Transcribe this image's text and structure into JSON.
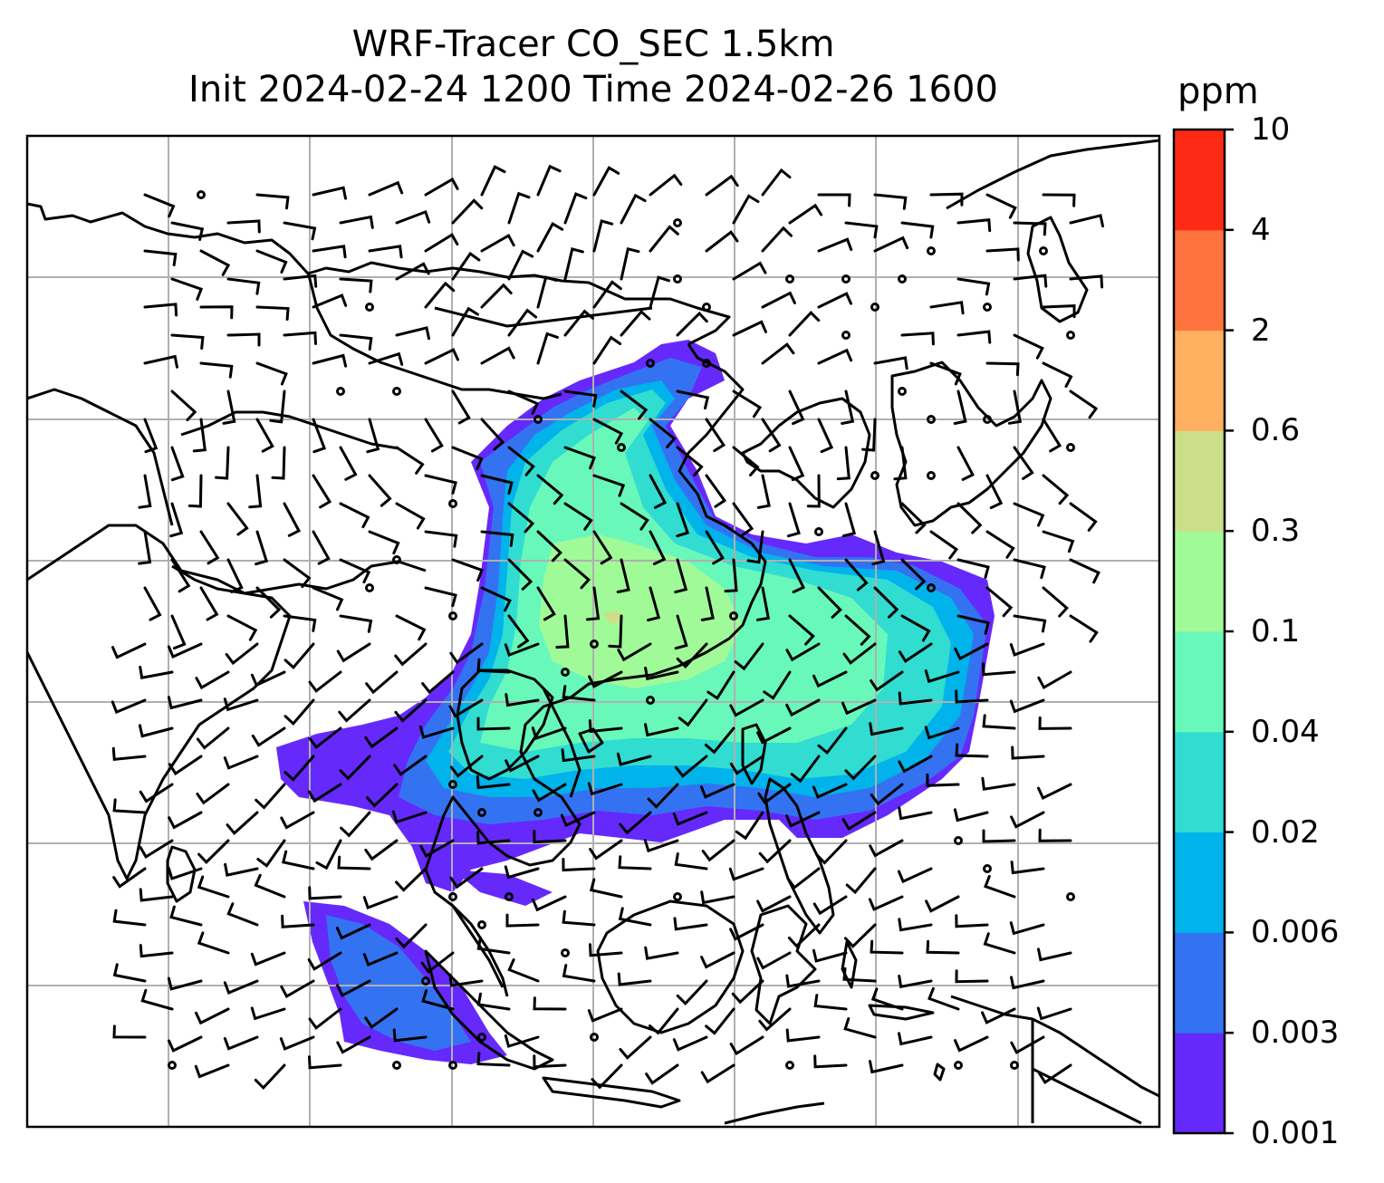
{
  "title": {
    "line1": "WRF-Tracer CO_SEC 1.5km",
    "line2": "Init 2024-02-24 1200 Time 2024-02-26 1600"
  },
  "colorbar": {
    "unit": "ppm",
    "levels": [
      "0.001",
      "0.003",
      "0.006",
      "0.02",
      "0.04",
      "0.1",
      "0.3",
      "0.6",
      "2",
      "4",
      "10"
    ],
    "colors": [
      "#6629fc",
      "#3373f2",
      "#00b3ea",
      "#31dcd1",
      "#68f8ba",
      "#a0fa98",
      "#ccde89",
      "#ffb061",
      "#ff733e",
      "#ff2a16"
    ]
  },
  "map": {
    "gridlines": true,
    "grid_color": "#b0b0b0",
    "coastline_color": "#000000",
    "wind_barb_color": "#000000",
    "plume_color_low": "#6629fc"
  }
}
